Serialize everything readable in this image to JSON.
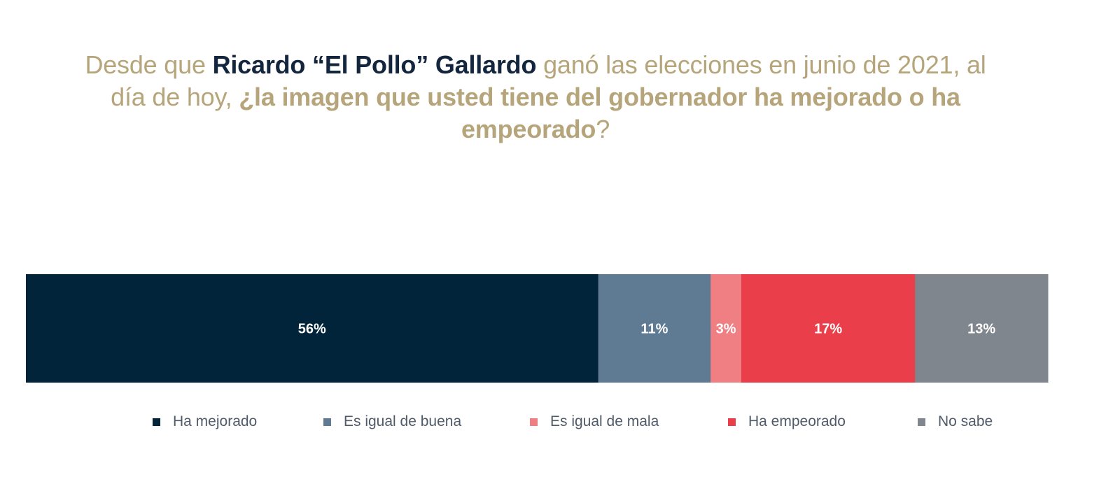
{
  "title": {
    "part1": "Desde que ",
    "part2": "Ricardo “El Pollo” Gallardo",
    "part3": " ganó las elecciones en junio de 2021, al día de hoy, ",
    "part4": "¿la imagen que usted tiene del gobernador ha mejorado o ha empeorado",
    "part5": "?"
  },
  "chart_data": {
    "type": "bar",
    "orientation": "horizontal-stacked-100",
    "categories": [
      "Ha mejorado",
      "Es igual de buena",
      "Es igual de mala",
      "Ha empeorado",
      "No sabe"
    ],
    "values": [
      56,
      11,
      3,
      17,
      13
    ],
    "value_labels": [
      "56%",
      "11%",
      "3%",
      "17%",
      "13%"
    ],
    "colors": [
      "#02243a",
      "#5f7a93",
      "#f07f84",
      "#ea3f4a",
      "#7f868d"
    ],
    "legend_position": "bottom"
  },
  "legend": {
    "items": [
      {
        "label": "Ha mejorado",
        "color": "#02243a"
      },
      {
        "label": "Es igual de buena",
        "color": "#5f7a93"
      },
      {
        "label": "Es igual de mala",
        "color": "#f07f84"
      },
      {
        "label": "Ha empeorado",
        "color": "#ea3f4a"
      },
      {
        "label": "No sabe",
        "color": "#7f868d"
      }
    ]
  }
}
